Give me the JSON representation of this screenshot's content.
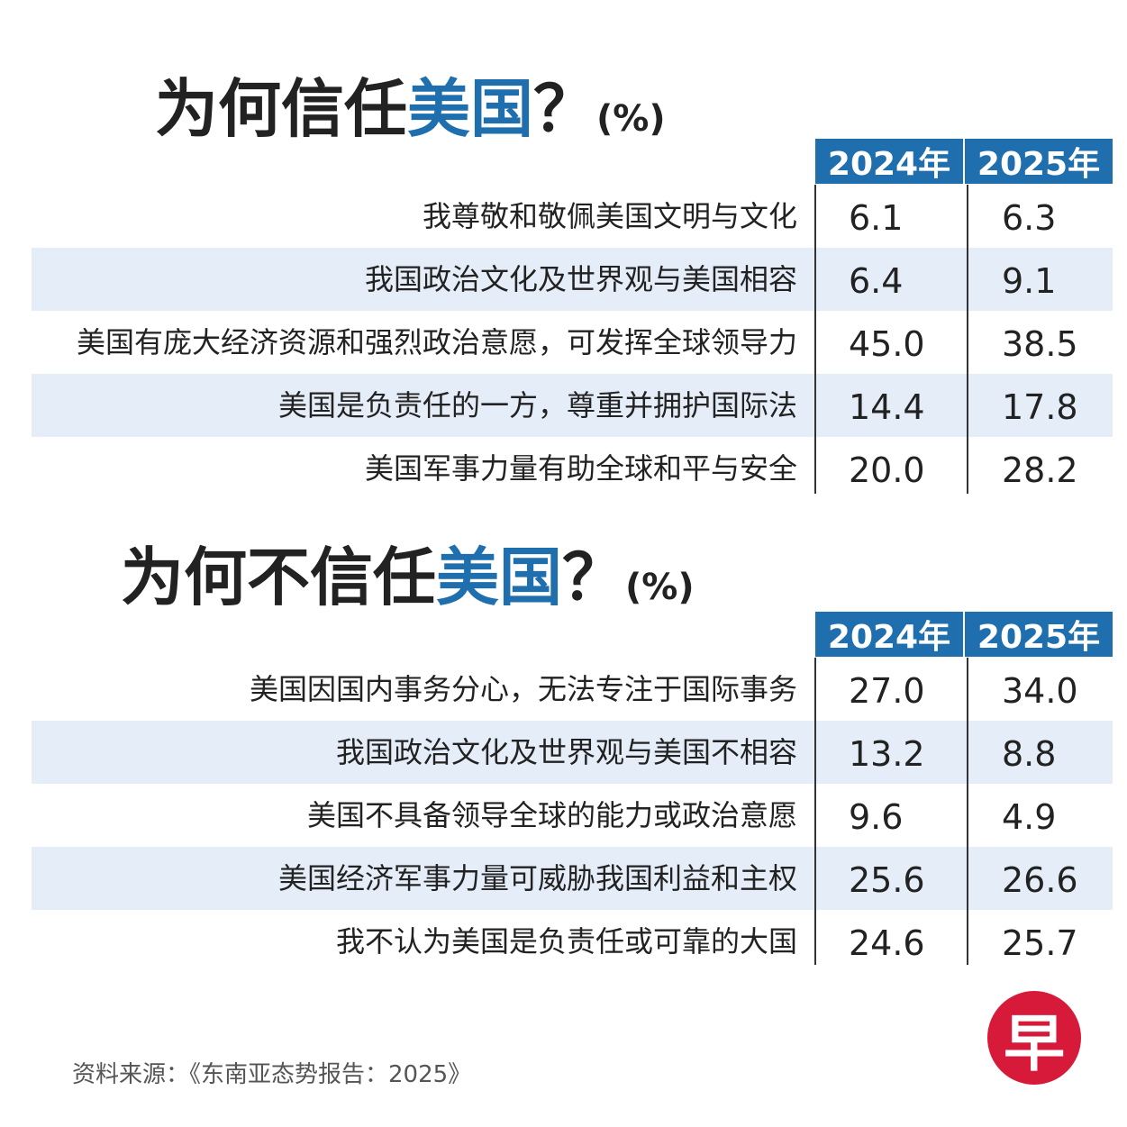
{
  "chart_data": [
    {
      "type": "table",
      "title": "为何信任美国？",
      "title_plain": "为何信任",
      "title_highlight": "美国",
      "title_mark": "？",
      "unit": "(%)",
      "columns": [
        "2024年",
        "2025年"
      ],
      "rows": [
        {
          "label": "我尊敬和敬佩美国文明与文化",
          "values": [
            "6.1",
            "6.3"
          ]
        },
        {
          "label": "我国政治文化及世界观与美国相容",
          "values": [
            "6.4",
            "9.1"
          ]
        },
        {
          "label": "美国有庞大经济资源和强烈政治意愿，可发挥全球领导力",
          "values": [
            "45.0",
            "38.5"
          ]
        },
        {
          "label": "美国是负责任的一方，尊重并拥护国际法",
          "values": [
            "14.4",
            "17.8"
          ]
        },
        {
          "label": "美国军事力量有助全球和平与安全",
          "values": [
            "20.0",
            "28.2"
          ]
        }
      ]
    },
    {
      "type": "table",
      "title": "为何不信任美国？",
      "title_plain": "为何不信任",
      "title_highlight": "美国",
      "title_mark": "？",
      "unit": "(%)",
      "columns": [
        "2024年",
        "2025年"
      ],
      "rows": [
        {
          "label": "美国因国内事务分心，无法专注于国际事务",
          "values": [
            "27.0",
            "34.0"
          ]
        },
        {
          "label": "我国政治文化及世界观与美国不相容",
          "values": [
            "13.2",
            "8.8"
          ]
        },
        {
          "label": "美国不具备领导全球的能力或政治意愿",
          "values": [
            "9.6",
            "4.9"
          ]
        },
        {
          "label": "美国经济军事力量可威胁我国利益和主权",
          "values": [
            "25.6",
            "26.6"
          ]
        },
        {
          "label": "我不认为美国是负责任或可靠的大国",
          "values": [
            "24.6",
            "25.7"
          ]
        }
      ]
    }
  ],
  "source": "资料来源：《东南亚态势报告：2025》",
  "logo": {
    "text": "早",
    "color": "#d7193a"
  },
  "colors": {
    "accent": "#1f6fae",
    "row_shade": "#e5eef8"
  }
}
